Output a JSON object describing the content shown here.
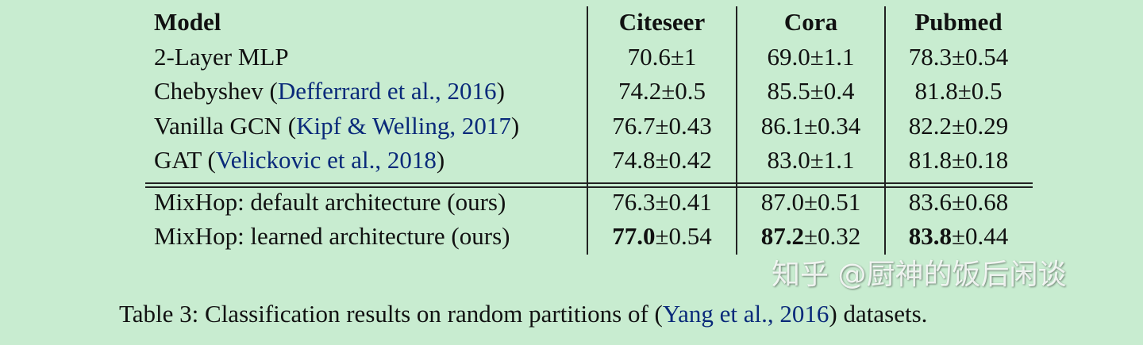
{
  "table": {
    "headers": [
      "Model",
      "Citeseer",
      "Cora",
      "Pubmed"
    ],
    "rows": [
      {
        "model": "2-Layer MLP",
        "pre": "",
        "cite": "",
        "post": "",
        "values": [
          {
            "bold": "",
            "rest": "70.6±1"
          },
          {
            "bold": "",
            "rest": "69.0±1.1"
          },
          {
            "bold": "",
            "rest": "78.3±0.54"
          }
        ]
      },
      {
        "model": "Chebyshev",
        "pre": " (",
        "cite": "Defferrard et al., 2016",
        "post": ")",
        "values": [
          {
            "bold": "",
            "rest": "74.2±0.5"
          },
          {
            "bold": "",
            "rest": "85.5±0.4"
          },
          {
            "bold": "",
            "rest": "81.8±0.5"
          }
        ]
      },
      {
        "model": "Vanilla GCN",
        "pre": " (",
        "cite": "Kipf & Welling, 2017",
        "post": ")",
        "values": [
          {
            "bold": "",
            "rest": "76.7±0.43"
          },
          {
            "bold": "",
            "rest": "86.1±0.34"
          },
          {
            "bold": "",
            "rest": "82.2±0.29"
          }
        ]
      },
      {
        "model": "GAT",
        "pre": " (",
        "cite": "Velickovic et al., 2018",
        "post": ")",
        "values": [
          {
            "bold": "",
            "rest": "74.8±0.42"
          },
          {
            "bold": "",
            "rest": "83.0±1.1"
          },
          {
            "bold": "",
            "rest": "81.8±0.18"
          }
        ]
      },
      {
        "model": "MixHop: default architecture (ours)",
        "pre": "",
        "cite": "",
        "post": "",
        "values": [
          {
            "bold": "",
            "rest": "76.3±0.41"
          },
          {
            "bold": "",
            "rest": "87.0±0.51"
          },
          {
            "bold": "",
            "rest": "83.6±0.68"
          }
        ]
      },
      {
        "model": "MixHop: learned architecture (ours)",
        "pre": "",
        "cite": "",
        "post": "",
        "values": [
          {
            "bold": "77.0",
            "rest": "±0.54"
          },
          {
            "bold": "87.2",
            "rest": "±0.32"
          },
          {
            "bold": "83.8",
            "rest": "±0.44"
          }
        ]
      }
    ]
  },
  "caption": {
    "prefix": "Table 3: Classification results on random partitions of (",
    "cite": "Yang et al., 2016",
    "suffix": ") datasets."
  },
  "watermark": "知乎 @厨神的饭后闲谈",
  "colors": {
    "background": "#c8ecd0",
    "citation": "#0a2a7a",
    "text": "#111111"
  }
}
